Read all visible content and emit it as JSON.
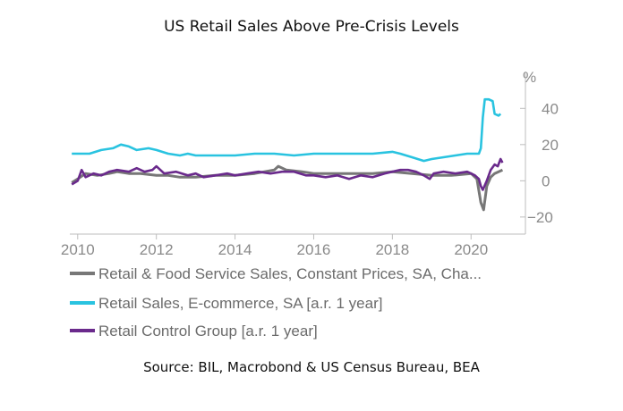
{
  "chart_data": {
    "type": "line",
    "title": "US Retail Sales Above Pre-Crisis Levels",
    "unit": "%",
    "source": "Source: BIL, Macrobond & US Census Bureau, BEA",
    "xlim": [
      2009.8,
      2020.95
    ],
    "ylim": [
      -25,
      52
    ],
    "x_ticks": [
      2010,
      2012,
      2014,
      2016,
      2018,
      2020
    ],
    "y_ticks": [
      40,
      20,
      0,
      -20
    ],
    "grid": false,
    "legend_position": "bottom",
    "series": [
      {
        "name": "Retail & Food Service Sales, Constant Prices, SA, Cha...",
        "color": "#777777",
        "points": [
          [
            2009.85,
            -1
          ],
          [
            2010,
            1
          ],
          [
            2010.2,
            4
          ],
          [
            2010.5,
            3
          ],
          [
            2010.8,
            4
          ],
          [
            2011,
            5
          ],
          [
            2011.3,
            4
          ],
          [
            2011.6,
            4
          ],
          [
            2012,
            3
          ],
          [
            2012.3,
            3
          ],
          [
            2012.6,
            2
          ],
          [
            2013,
            2
          ],
          [
            2013.5,
            3
          ],
          [
            2014,
            3
          ],
          [
            2014.5,
            4
          ],
          [
            2015,
            6
          ],
          [
            2015.1,
            8
          ],
          [
            2015.3,
            6
          ],
          [
            2015.7,
            5
          ],
          [
            2016,
            4
          ],
          [
            2016.5,
            4
          ],
          [
            2017,
            4
          ],
          [
            2017.5,
            4
          ],
          [
            2018,
            5
          ],
          [
            2018.5,
            4
          ],
          [
            2019,
            3
          ],
          [
            2019.5,
            3
          ],
          [
            2020,
            4
          ],
          [
            2020.15,
            1
          ],
          [
            2020.25,
            -12
          ],
          [
            2020.32,
            -16
          ],
          [
            2020.4,
            -3
          ],
          [
            2020.5,
            2
          ],
          [
            2020.6,
            4
          ],
          [
            2020.7,
            5
          ],
          [
            2020.8,
            6
          ]
        ]
      },
      {
        "name": "Retail Sales, E-commerce, SA [a.r. 1 year]",
        "color": "#29c3e0",
        "points": [
          [
            2009.85,
            15
          ],
          [
            2010,
            15
          ],
          [
            2010.3,
            15
          ],
          [
            2010.6,
            17
          ],
          [
            2010.9,
            18
          ],
          [
            2011.1,
            20
          ],
          [
            2011.3,
            19
          ],
          [
            2011.5,
            17
          ],
          [
            2011.8,
            18
          ],
          [
            2012,
            17
          ],
          [
            2012.3,
            15
          ],
          [
            2012.6,
            14
          ],
          [
            2012.8,
            15
          ],
          [
            2013,
            14
          ],
          [
            2013.5,
            14
          ],
          [
            2014,
            14
          ],
          [
            2014.5,
            15
          ],
          [
            2015,
            15
          ],
          [
            2015.5,
            14
          ],
          [
            2016,
            15
          ],
          [
            2016.5,
            15
          ],
          [
            2017,
            15
          ],
          [
            2017.5,
            15
          ],
          [
            2018,
            16
          ],
          [
            2018.2,
            15
          ],
          [
            2018.5,
            13
          ],
          [
            2018.8,
            11
          ],
          [
            2019,
            12
          ],
          [
            2019.3,
            13
          ],
          [
            2019.6,
            14
          ],
          [
            2019.9,
            15
          ],
          [
            2020.2,
            15
          ],
          [
            2020.25,
            18
          ],
          [
            2020.3,
            35
          ],
          [
            2020.35,
            45
          ],
          [
            2020.45,
            45
          ],
          [
            2020.55,
            44
          ],
          [
            2020.6,
            37
          ],
          [
            2020.7,
            36
          ],
          [
            2020.75,
            37
          ]
        ]
      },
      {
        "name": "Retail Control Group [a.r. 1 year]",
        "color": "#6a2a8c",
        "points": [
          [
            2009.85,
            -2
          ],
          [
            2010,
            0
          ],
          [
            2010.1,
            6
          ],
          [
            2010.2,
            2
          ],
          [
            2010.4,
            4
          ],
          [
            2010.6,
            3
          ],
          [
            2010.8,
            5
          ],
          [
            2011,
            6
          ],
          [
            2011.3,
            5
          ],
          [
            2011.5,
            7
          ],
          [
            2011.7,
            5
          ],
          [
            2011.9,
            6
          ],
          [
            2012,
            8
          ],
          [
            2012.2,
            4
          ],
          [
            2012.5,
            5
          ],
          [
            2012.8,
            3
          ],
          [
            2013,
            4
          ],
          [
            2013.2,
            2
          ],
          [
            2013.5,
            3
          ],
          [
            2013.8,
            4
          ],
          [
            2014,
            3
          ],
          [
            2014.3,
            4
          ],
          [
            2014.6,
            5
          ],
          [
            2014.9,
            4
          ],
          [
            2015.2,
            5
          ],
          [
            2015.5,
            5
          ],
          [
            2015.8,
            3
          ],
          [
            2016,
            3
          ],
          [
            2016.3,
            2
          ],
          [
            2016.6,
            3
          ],
          [
            2016.9,
            1
          ],
          [
            2017.2,
            3
          ],
          [
            2017.5,
            2
          ],
          [
            2017.8,
            4
          ],
          [
            2018,
            5
          ],
          [
            2018.2,
            6
          ],
          [
            2018.4,
            6
          ],
          [
            2018.6,
            5
          ],
          [
            2018.8,
            3
          ],
          [
            2018.95,
            1
          ],
          [
            2019.05,
            4
          ],
          [
            2019.3,
            5
          ],
          [
            2019.6,
            4
          ],
          [
            2019.9,
            5
          ],
          [
            2020,
            4
          ],
          [
            2020.1,
            3
          ],
          [
            2020.2,
            1
          ],
          [
            2020.25,
            -3
          ],
          [
            2020.3,
            -5
          ],
          [
            2020.4,
            0
          ],
          [
            2020.5,
            6
          ],
          [
            2020.6,
            9
          ],
          [
            2020.68,
            8
          ],
          [
            2020.75,
            12
          ],
          [
            2020.8,
            10
          ]
        ]
      }
    ]
  }
}
